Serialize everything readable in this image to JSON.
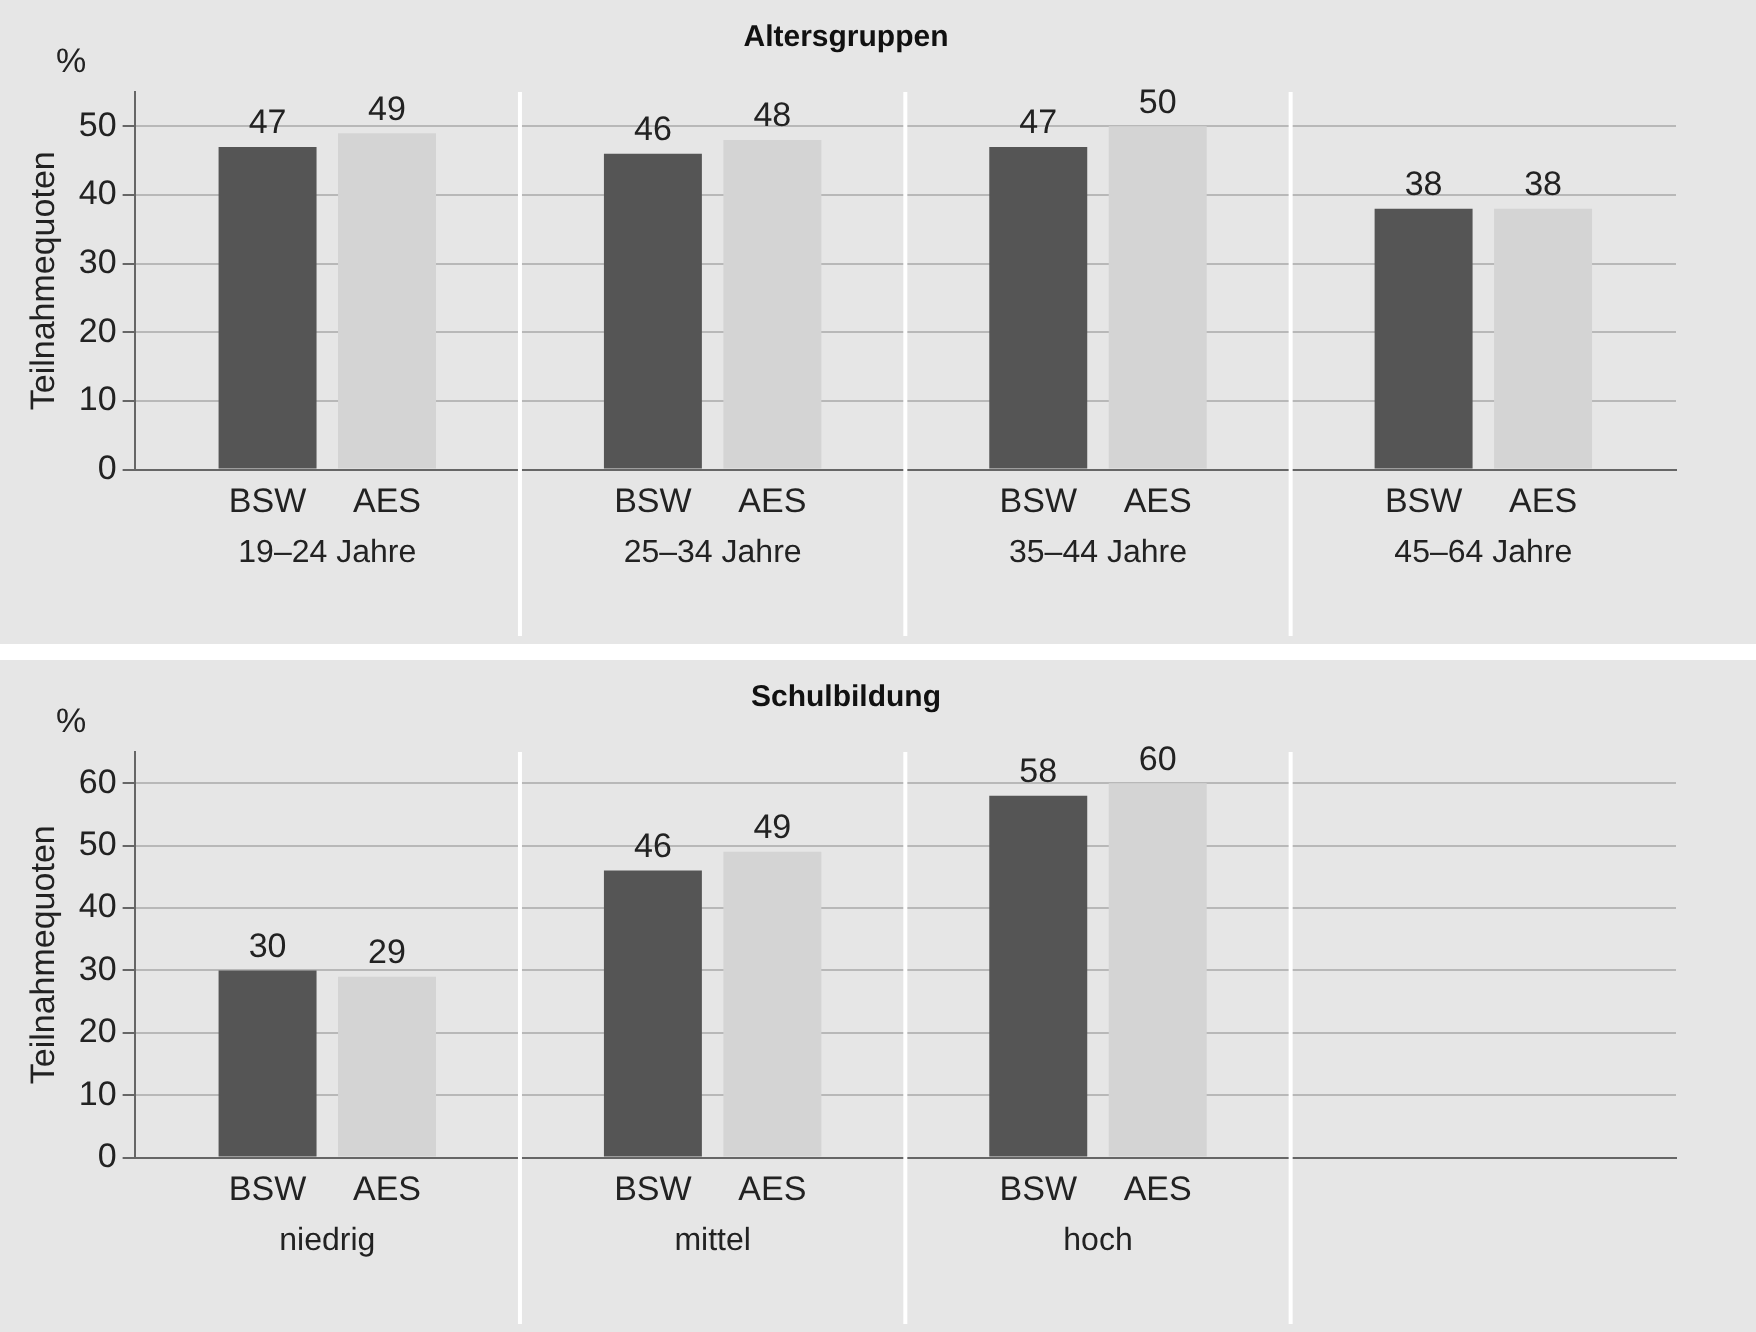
{
  "chart_data": [
    {
      "type": "bar",
      "title": "Altersgruppen",
      "ylabel": "Teilnahmequoten",
      "annotations": [
        "%"
      ],
      "categories": [
        "19–24 Jahre",
        "25–34 Jahre",
        "35–44 Jahre",
        "45–64 Jahre"
      ],
      "series": [
        {
          "name": "BSW",
          "color": "#555555",
          "values": [
            47,
            46,
            47,
            38
          ]
        },
        {
          "name": "AES",
          "color": "#d4d4d4",
          "values": [
            49,
            48,
            50,
            38
          ]
        }
      ],
      "ylim": [
        0,
        55
      ],
      "yticks": [
        0,
        10,
        20,
        30,
        40,
        50
      ],
      "grid": "y",
      "data_labels": true,
      "legend": false
    },
    {
      "type": "bar",
      "title": "Schulbildung",
      "ylabel": "Teilnahmequoten",
      "annotations": [
        "%"
      ],
      "categories": [
        "niedrig",
        "mittel",
        "hoch",
        null
      ],
      "series": [
        {
          "name": "BSW",
          "color": "#555555",
          "values": [
            30,
            46,
            58,
            null
          ]
        },
        {
          "name": "AES",
          "color": "#d4d4d4",
          "values": [
            29,
            49,
            60,
            null
          ]
        }
      ],
      "ylim": [
        0,
        65
      ],
      "yticks": [
        0,
        10,
        20,
        30,
        40,
        50,
        60
      ],
      "grid": "y",
      "data_labels": true,
      "legend": false
    }
  ]
}
